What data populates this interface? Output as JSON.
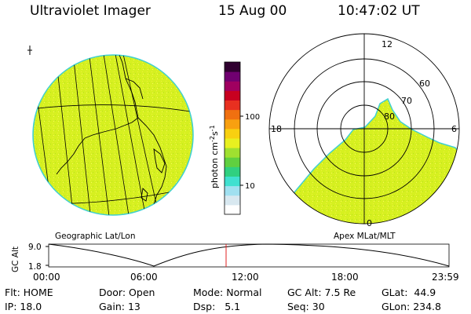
{
  "header": {
    "instrument": "Ultraviolet Imager",
    "date": "15 Aug 00",
    "time": "10:47:02 UT"
  },
  "colorbar": {
    "unit_label": "photon cm",
    "unit_exp1": "-2",
    "unit_mid": "s",
    "unit_exp2": "-1",
    "tick_high": "100",
    "tick_low": "10",
    "colors": [
      "#ffffff",
      "#d8e8f0",
      "#a0e0f0",
      "#40e0d0",
      "#30d080",
      "#60d040",
      "#a0e030",
      "#e8f020",
      "#f8d010",
      "#f8a010",
      "#f07010",
      "#e83020",
      "#c80020",
      "#a00060",
      "#700070",
      "#300030"
    ]
  },
  "geo_panel": {
    "label": "Geographic Lat/Lon",
    "fill_color": "#d6f020"
  },
  "polar_panel": {
    "label": "Apex MLat/MLT",
    "mlt_top": "12",
    "mlt_left": "18",
    "mlt_right": "6",
    "mlt_bottom": "0",
    "lat_60": "60",
    "lat_70": "70",
    "lat_80": "80"
  },
  "altitude_plot": {
    "ylabel": "GC Alt",
    "ytick_high": "9.0",
    "ytick_low": "1.8",
    "xticks": [
      "00:00",
      "06:00",
      "12:00",
      "18:00",
      "23:59"
    ],
    "current_time_marker": "10:47"
  },
  "footer": {
    "flt_label": "Flt:",
    "flt_value": "HOME",
    "ip_label": "IP:",
    "ip_value": "18.0",
    "door_label": "Door:",
    "door_value": "Open",
    "gain_label": "Gain:",
    "gain_value": "13",
    "mode_label": "Mode:",
    "mode_value": "Normal",
    "dsp_label": "Dsp:",
    "dsp_value": "5.1",
    "gcalt_label": "GC Alt:",
    "gcalt_value": "7.5 Re",
    "seq_label": "Seq:",
    "seq_value": "30",
    "glat_label": "GLat:",
    "glat_value": "44.9",
    "glon_label": "GLon:",
    "glon_value": "234.8"
  }
}
